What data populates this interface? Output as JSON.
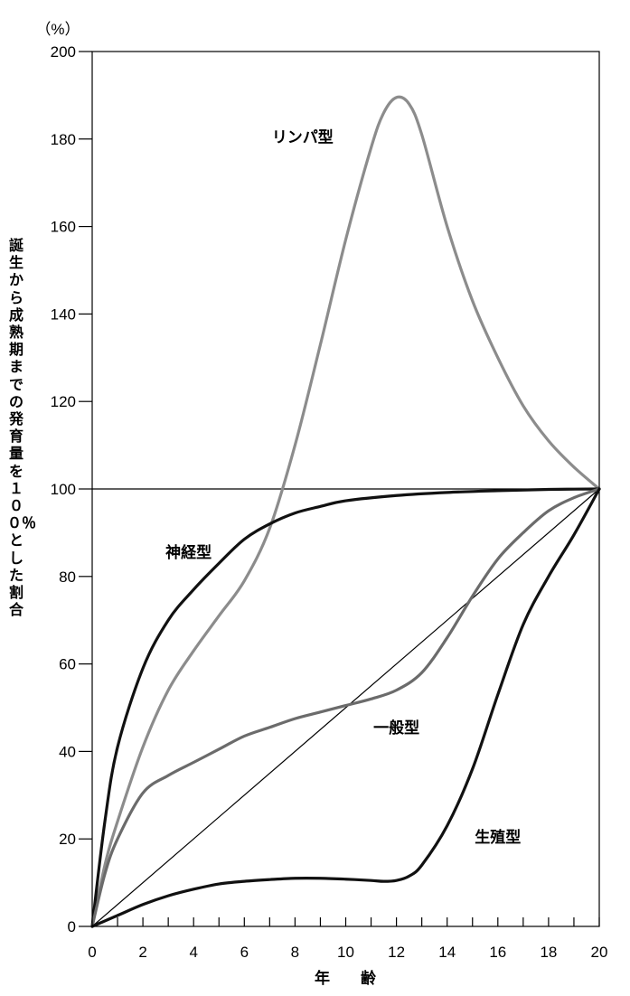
{
  "chart_data": {
    "type": "line",
    "unit_label": "（%）",
    "xlabel": "年　　齢",
    "ylabel": "誕生から成熟期までの発育量を１００％とした割合",
    "xlim": [
      0,
      20
    ],
    "ylim": [
      0,
      200
    ],
    "x_ticks": [
      0,
      2,
      4,
      6,
      8,
      10,
      12,
      14,
      16,
      18,
      20
    ],
    "y_ticks": [
      0,
      20,
      40,
      60,
      80,
      100,
      120,
      140,
      160,
      180,
      200
    ],
    "x_minor_ticks": [
      0,
      1,
      2,
      3,
      4,
      5,
      6,
      7,
      8,
      9,
      10,
      11,
      12,
      13,
      14,
      15,
      16,
      17,
      18,
      19,
      20
    ],
    "grid": false,
    "reference_lines": [
      {
        "x": [
          0,
          20
        ],
        "y": [
          100,
          100
        ]
      },
      {
        "x": [
          0,
          20
        ],
        "y": [
          0,
          100
        ]
      }
    ],
    "series": [
      {
        "name": "リンパ型",
        "color": "#8c8c8c",
        "x": [
          0,
          0.5,
          1,
          2,
          3,
          4,
          5,
          6,
          7,
          8,
          9,
          10,
          11,
          11.5,
          12,
          12.5,
          13,
          14,
          15,
          16,
          17,
          18,
          19,
          20
        ],
        "y": [
          0,
          14,
          24,
          41,
          54,
          63,
          71,
          79,
          91,
          110,
          133,
          157,
          178,
          186,
          189.5,
          188,
          181,
          160,
          143,
          130,
          119,
          111,
          105,
          100
        ]
      },
      {
        "name": "神経型",
        "color": "#111111",
        "x": [
          0,
          0.5,
          1,
          2,
          3,
          4,
          5,
          6,
          7,
          8,
          9,
          10,
          12,
          14,
          16,
          18,
          20
        ],
        "y": [
          0,
          24,
          41,
          59,
          70,
          77,
          83,
          88.5,
          92,
          94.5,
          96,
          97.3,
          98.5,
          99.2,
          99.6,
          99.9,
          100
        ]
      },
      {
        "name": "一般型",
        "color": "#6b6b6b",
        "x": [
          0,
          0.5,
          1,
          2,
          3,
          4,
          5,
          6,
          7,
          8,
          9,
          10,
          11,
          12,
          13,
          14,
          15,
          16,
          17,
          18,
          19,
          20
        ],
        "y": [
          0,
          12,
          20,
          30.5,
          34.5,
          37.5,
          40.5,
          43.5,
          45.5,
          47.5,
          49,
          50.5,
          52,
          54,
          58,
          66,
          75.5,
          84,
          90,
          95,
          98,
          100
        ]
      },
      {
        "name": "生殖型",
        "color": "#111111",
        "x": [
          0,
          1,
          2,
          3,
          4,
          5,
          6,
          7,
          8,
          9,
          10,
          11,
          11.5,
          12,
          12.5,
          13,
          14,
          15,
          16,
          17,
          18,
          19,
          20
        ],
        "y": [
          0,
          2.5,
          5,
          7,
          8.5,
          9.7,
          10.3,
          10.7,
          11,
          11,
          10.8,
          10.5,
          10.3,
          10.5,
          11.5,
          14,
          23,
          36,
          53,
          69,
          80,
          89.5,
          100
        ]
      }
    ]
  }
}
